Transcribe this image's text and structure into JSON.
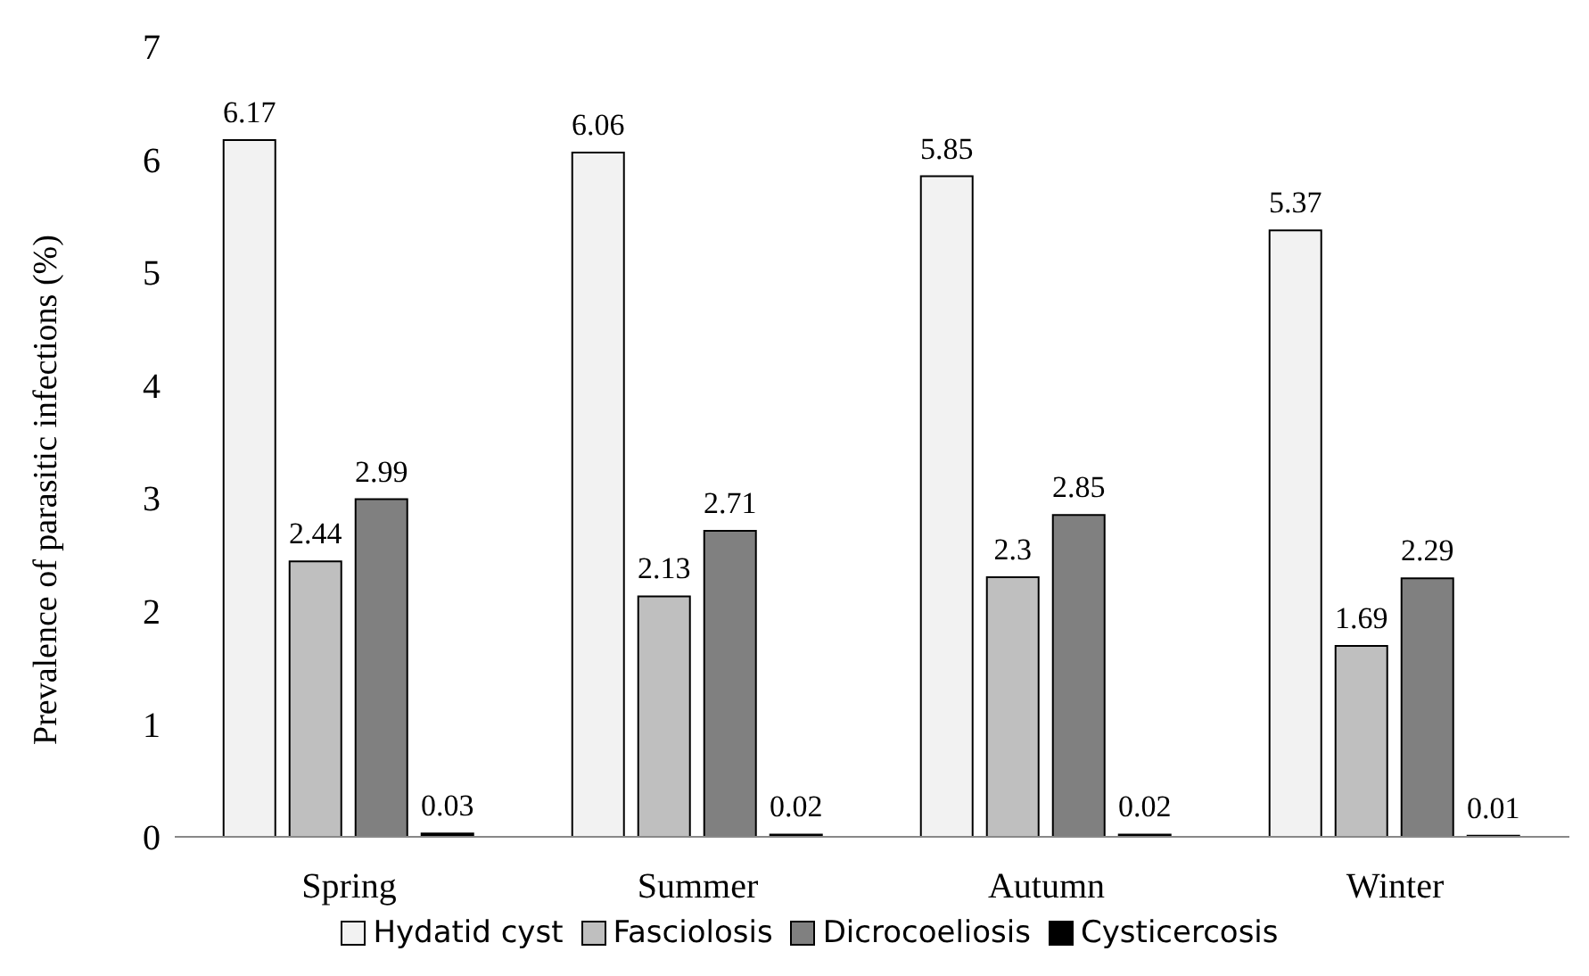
{
  "chart_data": {
    "type": "bar",
    "ylabel": "Prevalence of parasitic infections (%)",
    "categories": [
      "Spring",
      "Summer",
      "Autumn",
      "Winter"
    ],
    "series": [
      {
        "name": "Hydatid cyst",
        "color": "#f2f2f2",
        "values": [
          6.17,
          6.06,
          5.85,
          5.37
        ]
      },
      {
        "name": "Fasciolosis",
        "color": "#bfbfbf",
        "values": [
          2.44,
          2.13,
          2.3,
          1.69
        ]
      },
      {
        "name": "Dicrocoeliosis",
        "color": "#808080",
        "values": [
          2.99,
          2.71,
          2.85,
          2.29
        ]
      },
      {
        "name": "Cysticercosis",
        "color": "#000000",
        "values": [
          0.03,
          0.02,
          0.02,
          0.01
        ]
      }
    ],
    "ylim": [
      0,
      7
    ],
    "yticks": [
      0,
      1,
      2,
      3,
      4,
      5,
      6,
      7
    ],
    "grid": false,
    "legend": "bottom",
    "data_labels": true
  }
}
